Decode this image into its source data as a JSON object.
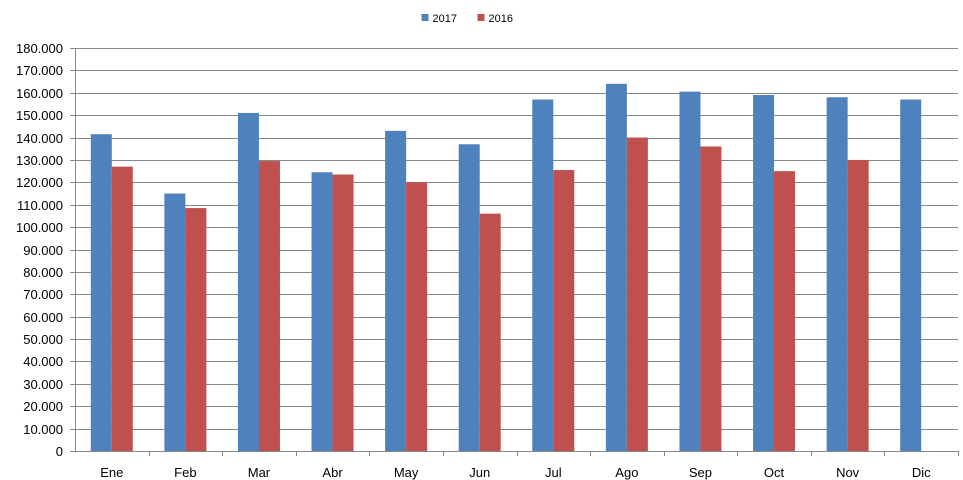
{
  "chart_data": {
    "type": "bar",
    "categories": [
      "Ene",
      "Feb",
      "Mar",
      "Abr",
      "May",
      "Jun",
      "Jul",
      "Ago",
      "Sep",
      "Oct",
      "Nov",
      "Dic"
    ],
    "series": [
      {
        "name": "2017",
        "color": "#4F81BD",
        "values": [
          141500,
          115000,
          151000,
          124500,
          143000,
          137000,
          157000,
          164000,
          160500,
          159000,
          158000,
          157000
        ]
      },
      {
        "name": "2016",
        "color": "#C0504D",
        "values": [
          127000,
          108500,
          129500,
          123500,
          120000,
          106000,
          125500,
          140000,
          136000,
          125000,
          130000,
          null
        ]
      }
    ],
    "ylim": [
      0,
      180000
    ],
    "yticks": [
      "0",
      "10.000",
      "20.000",
      "30.000",
      "40.000",
      "50.000",
      "60.000",
      "70.000",
      "80.000",
      "90.000",
      "100.000",
      "110.000",
      "120.000",
      "130.000",
      "140.000",
      "150.000",
      "160.000",
      "170.000",
      "180.000"
    ],
    "ytick_values": [
      0,
      10000,
      20000,
      30000,
      40000,
      50000,
      60000,
      70000,
      80000,
      90000,
      100000,
      110000,
      120000,
      130000,
      140000,
      150000,
      160000,
      170000,
      180000
    ],
    "grid": true,
    "legend_position": "top-center",
    "title": "",
    "xlabel": "",
    "ylabel": ""
  }
}
